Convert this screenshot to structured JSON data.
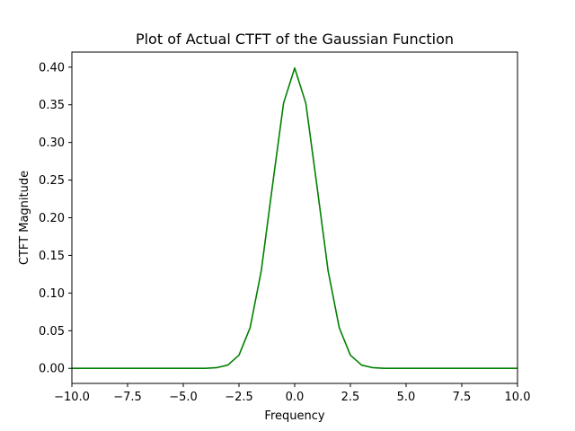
{
  "chart_data": {
    "type": "line",
    "title": "Plot of Actual CTFT of the Gaussian Function",
    "xlabel": "Frequency",
    "ylabel": "CTFT Magnitude",
    "xlim": [
      -10,
      10
    ],
    "ylim": [
      -0.02,
      0.42
    ],
    "xticks": [
      -10,
      -7.5,
      -5,
      -2.5,
      0,
      2.5,
      5,
      7.5,
      10
    ],
    "xtick_labels": [
      "−10.0",
      "−7.5",
      "−5.0",
      "−2.5",
      "0.0",
      "2.5",
      "5.0",
      "7.5",
      "10.0"
    ],
    "yticks": [
      0,
      0.05,
      0.1,
      0.15,
      0.2,
      0.25,
      0.3,
      0.35,
      0.4
    ],
    "ytick_labels": [
      "0.00",
      "0.05",
      "0.10",
      "0.15",
      "0.20",
      "0.25",
      "0.30",
      "0.35",
      "0.40"
    ],
    "grid": false,
    "series": [
      {
        "color": "#008000",
        "x": [
          -10,
          -9.5,
          -9,
          -8.5,
          -8,
          -7.5,
          -7,
          -6.5,
          -6,
          -5.5,
          -5,
          -4.5,
          -4,
          -3.5,
          -3,
          -2.5,
          -2,
          -1.5,
          -1,
          -0.5,
          0,
          0.5,
          1,
          1.5,
          2,
          2.5,
          3,
          3.5,
          4,
          4.5,
          5,
          5.5,
          6,
          6.5,
          7,
          7.5,
          8,
          8.5,
          9,
          9.5,
          10
        ],
        "y": [
          0,
          0,
          0,
          0,
          0,
          0,
          0,
          0,
          0,
          0,
          0,
          0,
          0.0001,
          0.0009,
          0.0044,
          0.0175,
          0.054,
          0.1295,
          0.242,
          0.3521,
          0.3989,
          0.3521,
          0.242,
          0.1295,
          0.054,
          0.0175,
          0.0044,
          0.0009,
          0.0001,
          0,
          0,
          0,
          0,
          0,
          0,
          0,
          0,
          0,
          0,
          0,
          0
        ]
      }
    ]
  }
}
